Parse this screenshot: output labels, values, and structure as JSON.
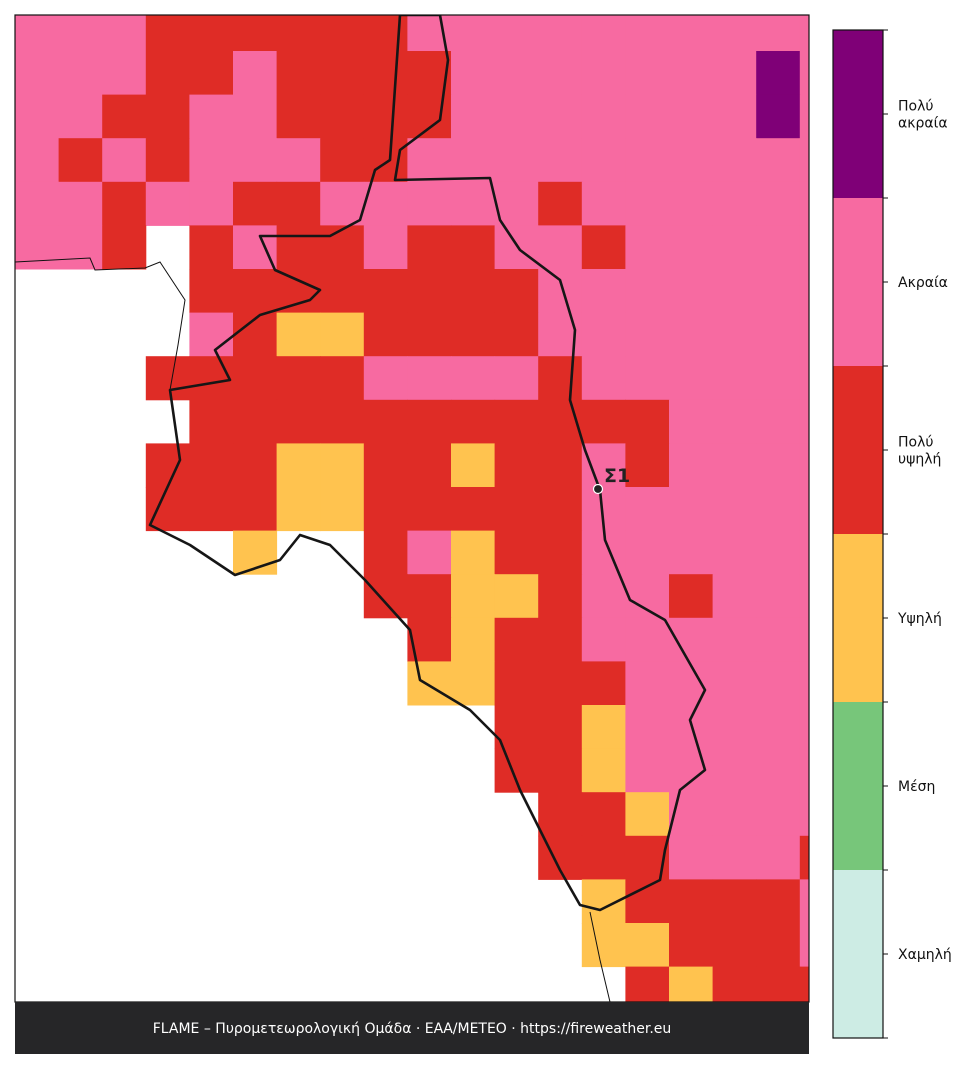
{
  "legend": [
    {
      "label": "Χαμηλή",
      "color": "#cdece4"
    },
    {
      "label": "Μέση",
      "color": "#77c67a"
    },
    {
      "label": "Υψηλή",
      "color": "#ffc34f"
    },
    {
      "label": "Πολύ\nυψηλή",
      "color": "#df2c26"
    },
    {
      "label": "Ακραία",
      "color": "#f76aa1"
    },
    {
      "label": "Πολύ\nακραία",
      "color": "#7f0077"
    }
  ],
  "station": {
    "label": "Σ1"
  },
  "footer": "FLAME – Πυρομετεωρολογική Ομάδα · ΕΑΑ/METEO · https://fireweather.eu",
  "grid": {
    "rows": [
      [
        4,
        4,
        4,
        3,
        3,
        3,
        3,
        3,
        3,
        4,
        4,
        4,
        4,
        4,
        4,
        4,
        4,
        4,
        4
      ],
      [
        4,
        4,
        4,
        3,
        3,
        4,
        3,
        3,
        3,
        3,
        4,
        4,
        4,
        4,
        4,
        4,
        4,
        5,
        4
      ],
      [
        4,
        4,
        3,
        3,
        4,
        4,
        3,
        3,
        3,
        3,
        4,
        4,
        4,
        4,
        4,
        4,
        4,
        5,
        4
      ],
      [
        4,
        3,
        4,
        3,
        4,
        4,
        4,
        3,
        3,
        4,
        4,
        4,
        4,
        4,
        4,
        4,
        4,
        4,
        4
      ],
      [
        4,
        4,
        3,
        4,
        4,
        3,
        3,
        4,
        4,
        4,
        4,
        4,
        3,
        4,
        4,
        4,
        4,
        4,
        4
      ],
      [
        4,
        4,
        3,
        null,
        3,
        4,
        3,
        3,
        4,
        3,
        3,
        4,
        4,
        3,
        4,
        4,
        4,
        4,
        4
      ],
      [
        null,
        null,
        null,
        null,
        3,
        3,
        3,
        3,
        3,
        3,
        3,
        3,
        4,
        4,
        4,
        4,
        4,
        4,
        4
      ],
      [
        null,
        null,
        null,
        null,
        4,
        3,
        2,
        2,
        3,
        3,
        3,
        3,
        4,
        4,
        4,
        4,
        4,
        4,
        4
      ],
      [
        null,
        null,
        null,
        3,
        3,
        3,
        3,
        3,
        4,
        4,
        4,
        4,
        3,
        4,
        4,
        4,
        4,
        4,
        4
      ],
      [
        null,
        null,
        null,
        null,
        3,
        3,
        3,
        3,
        3,
        3,
        3,
        3,
        3,
        3,
        3,
        4,
        4,
        4,
        4
      ],
      [
        null,
        null,
        null,
        3,
        3,
        3,
        2,
        2,
        3,
        3,
        2,
        3,
        3,
        4,
        3,
        4,
        4,
        4,
        4
      ],
      [
        null,
        null,
        null,
        3,
        3,
        3,
        2,
        2,
        3,
        3,
        3,
        3,
        3,
        4,
        4,
        4,
        4,
        4,
        4
      ],
      [
        null,
        null,
        null,
        null,
        null,
        2,
        null,
        null,
        3,
        4,
        2,
        3,
        3,
        4,
        4,
        4,
        4,
        4,
        4
      ],
      [
        null,
        null,
        null,
        null,
        null,
        null,
        null,
        null,
        3,
        3,
        2,
        2,
        3,
        4,
        4,
        3,
        4,
        4,
        4
      ],
      [
        null,
        null,
        null,
        null,
        null,
        null,
        null,
        null,
        null,
        3,
        2,
        3,
        3,
        4,
        4,
        4,
        4,
        4,
        4
      ],
      [
        null,
        null,
        null,
        null,
        null,
        null,
        null,
        null,
        null,
        2,
        2,
        3,
        3,
        3,
        4,
        4,
        4,
        4,
        4
      ],
      [
        null,
        null,
        null,
        null,
        null,
        null,
        null,
        null,
        null,
        null,
        null,
        3,
        3,
        2,
        4,
        4,
        4,
        4,
        4
      ],
      [
        null,
        null,
        null,
        null,
        null,
        null,
        null,
        null,
        null,
        null,
        null,
        3,
        3,
        2,
        4,
        4,
        4,
        4,
        4
      ],
      [
        null,
        null,
        null,
        null,
        null,
        null,
        null,
        null,
        null,
        null,
        null,
        null,
        3,
        3,
        2,
        4,
        4,
        4,
        4
      ],
      [
        null,
        null,
        null,
        null,
        null,
        null,
        null,
        null,
        null,
        null,
        null,
        null,
        3,
        3,
        3,
        4,
        4,
        4,
        3
      ],
      [
        null,
        null,
        null,
        null,
        null,
        null,
        null,
        null,
        null,
        null,
        null,
        null,
        null,
        2,
        3,
        3,
        3,
        3,
        4
      ],
      [
        null,
        null,
        null,
        null,
        null,
        null,
        null,
        null,
        null,
        null,
        null,
        null,
        null,
        2,
        2,
        3,
        3,
        3,
        4
      ],
      [
        null,
        null,
        null,
        null,
        null,
        null,
        null,
        null,
        null,
        null,
        null,
        null,
        null,
        null,
        3,
        2,
        3,
        3,
        3
      ]
    ]
  }
}
